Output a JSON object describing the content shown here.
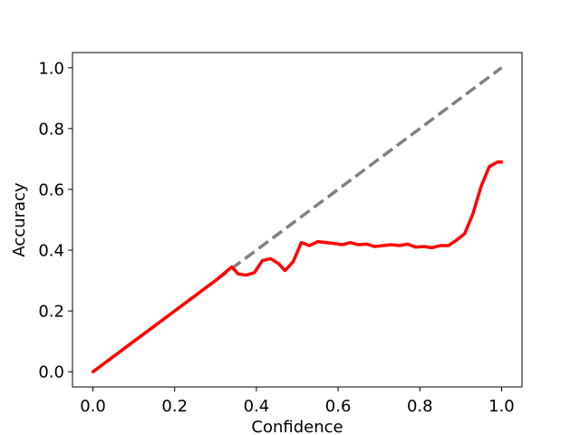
{
  "chart_data": {
    "type": "line",
    "xlabel": "Confidence",
    "ylabel": "Accuracy",
    "xlim": [
      -0.05,
      1.05
    ],
    "ylim": [
      -0.05,
      1.05
    ],
    "grid": false,
    "x_ticks": [
      0.0,
      0.2,
      0.4,
      0.6,
      0.8,
      1.0
    ],
    "x_tick_labels": [
      "0.0",
      "0.2",
      "0.4",
      "0.6",
      "0.8",
      "1.0"
    ],
    "y_ticks": [
      0.0,
      0.2,
      0.4,
      0.6,
      0.8,
      1.0
    ],
    "y_tick_labels": [
      "0.0",
      "0.2",
      "0.4",
      "0.6",
      "0.8",
      "1.0"
    ],
    "series": [
      {
        "style": "dashed",
        "color": "#808080",
        "x": [
          0.0,
          1.0
        ],
        "y": [
          0.0,
          1.0
        ]
      },
      {
        "style": "solid",
        "color": "#ff0000",
        "x": [
          0.0,
          0.1,
          0.2,
          0.3,
          0.34,
          0.355,
          0.375,
          0.395,
          0.415,
          0.435,
          0.455,
          0.47,
          0.49,
          0.51,
          0.53,
          0.55,
          0.57,
          0.59,
          0.61,
          0.63,
          0.65,
          0.67,
          0.69,
          0.71,
          0.73,
          0.75,
          0.77,
          0.79,
          0.81,
          0.83,
          0.85,
          0.87,
          0.89,
          0.91,
          0.93,
          0.95,
          0.97,
          0.99,
          1.0
        ],
        "y": [
          0.0,
          0.1,
          0.2,
          0.3,
          0.345,
          0.322,
          0.318,
          0.326,
          0.366,
          0.372,
          0.355,
          0.333,
          0.362,
          0.425,
          0.415,
          0.428,
          0.425,
          0.422,
          0.418,
          0.425,
          0.418,
          0.42,
          0.412,
          0.415,
          0.418,
          0.415,
          0.42,
          0.41,
          0.412,
          0.408,
          0.415,
          0.415,
          0.433,
          0.455,
          0.52,
          0.61,
          0.675,
          0.69,
          0.69
        ]
      }
    ]
  }
}
